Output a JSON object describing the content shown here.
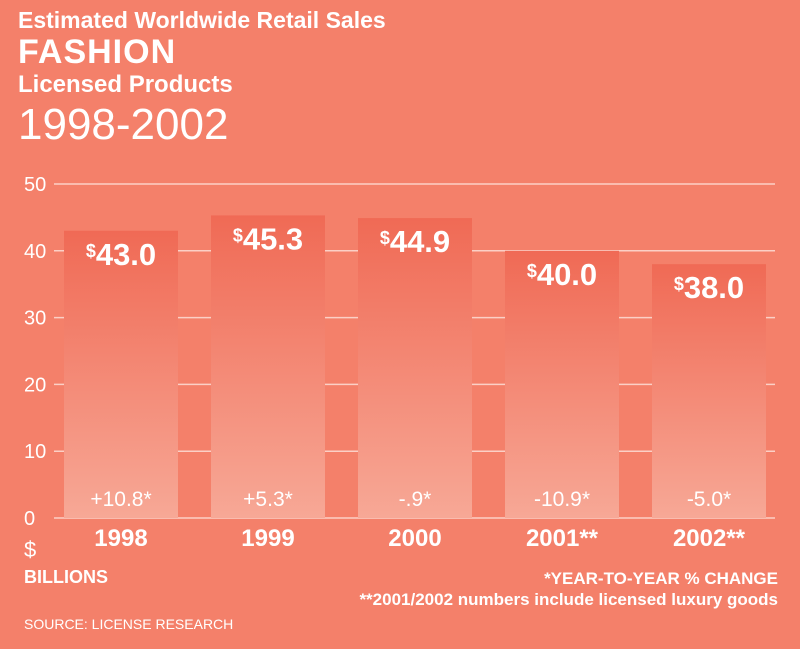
{
  "header": {
    "line1": "Estimated Worldwide Retail Sales",
    "line2": "FASHION",
    "line3": "Licensed Products",
    "line4": "1998-2002"
  },
  "chart_data": {
    "type": "bar",
    "categories": [
      "1998",
      "1999",
      "2000",
      "2001**",
      "2002**"
    ],
    "values": [
      43.0,
      45.3,
      44.9,
      40.0,
      38.0
    ],
    "value_labels": [
      "43.0",
      "45.3",
      "44.9",
      "40.0",
      "38.0"
    ],
    "change_labels": [
      "+10.8*",
      "+5.3*",
      "-.9*",
      "-10.9*",
      "-5.0*"
    ],
    "y_ticks": [
      "0",
      "10",
      "20",
      "30",
      "40",
      "50"
    ],
    "ylim": [
      0,
      50
    ],
    "grid": true,
    "currency_symbol": "$",
    "colors": {
      "background": "#f4806a",
      "bar_top": "#f06a55",
      "bar_bottom": "#f7a896",
      "grid": "#fbd0c6",
      "text": "#ffffff"
    }
  },
  "footer": {
    "unit_symbol": "$",
    "unit_label": "BILLIONS",
    "note1": "*YEAR-TO-YEAR % CHANGE",
    "note2": "**2001/2002 numbers include licensed luxury goods",
    "source": "SOURCE: LICENSE RESEARCH"
  }
}
